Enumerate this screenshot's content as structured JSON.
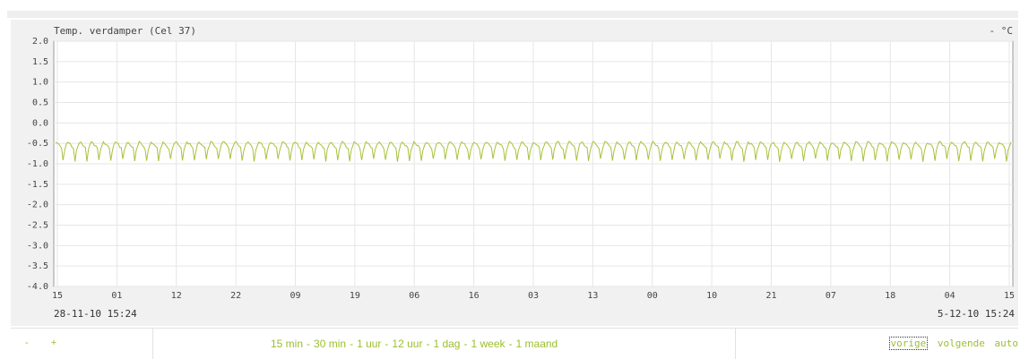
{
  "chart": {
    "title": "Temp. verdamper (Cel 37)",
    "unit": "- °C",
    "start_label": "28-11-10 15:24",
    "end_label": "5-12-10 15:24",
    "line_color": "#a8c23a"
  },
  "chart_data": {
    "type": "line",
    "title": "Temp. verdamper (Cel 37)",
    "ylabel": "- °C",
    "ylim": [
      -4.0,
      2.0
    ],
    "yticks": [
      "2.0",
      "1.5",
      "1.0",
      "0.5",
      "0.0",
      "-0.5",
      "-1.0",
      "-1.5",
      "-2.0",
      "-2.5",
      "-3.0",
      "-3.5",
      "-4.0"
    ],
    "xticks": [
      "15",
      "01",
      "12",
      "22",
      "09",
      "19",
      "06",
      "16",
      "03",
      "13",
      "00",
      "10",
      "21",
      "07",
      "18",
      "04",
      "15"
    ],
    "x_start": "28-11-10 15:24",
    "x_end": "5-12-10 15:24",
    "grid": true,
    "series": [
      {
        "pattern": "periodic defrost cycles",
        "cycles": 80,
        "baseline_max": -0.45,
        "baseline_min": -0.7,
        "dip_min": -0.95
      }
    ]
  },
  "footer": {
    "zoom_minus": "-",
    "zoom_plus": "+",
    "ranges": [
      "15 min",
      "30 min",
      "1 uur",
      "12 uur",
      "1 dag",
      "1 week",
      "1 maand"
    ],
    "nav": {
      "prev": "vorige",
      "next": "volgende",
      "auto": "auto"
    }
  }
}
